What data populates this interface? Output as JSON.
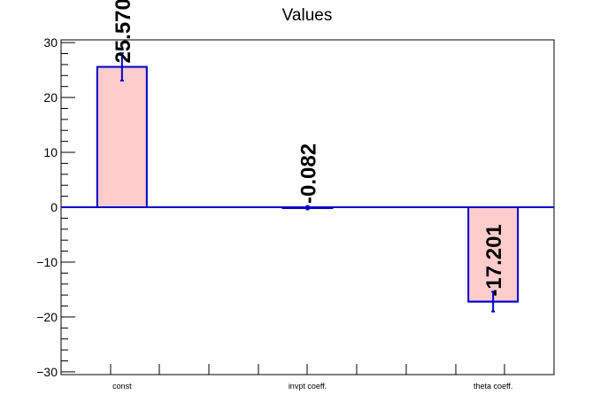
{
  "chart_data": {
    "type": "bar",
    "title": "Values",
    "xlabel": "",
    "ylabel": "",
    "categories": [
      "const",
      "invpt coeff.",
      "theta coeff."
    ],
    "values": [
      25.57,
      -0.082,
      -17.201
    ],
    "errors": [
      2.5,
      0.3,
      1.8
    ],
    "value_labels": [
      "25.570",
      "-0.082",
      "-17.201"
    ],
    "ylim": [
      -30.5,
      30.5
    ],
    "yticks": [
      "30",
      "20",
      "10",
      "0",
      "−10",
      "−20",
      "−30"
    ],
    "colors": {
      "bar_fill": "#ffcccc",
      "bar_edge": "#0000cc",
      "axis": "#000000"
    },
    "grid": false,
    "legend": "none"
  }
}
